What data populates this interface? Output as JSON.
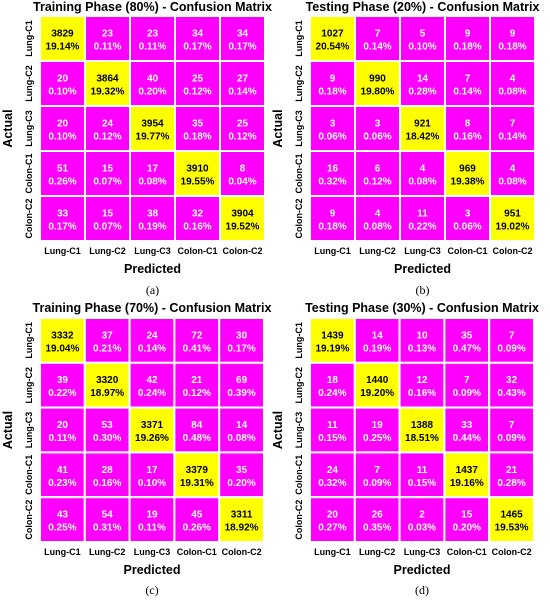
{
  "colors": {
    "offdiag": "#ff00ff",
    "diag": "#ffff00",
    "grid": "#ffffff",
    "offdiag_text": "#ffffff",
    "diag_text": "#000000"
  },
  "chart_data": [
    {
      "type": "heatmap",
      "caption": "(a)",
      "title": "Training Phase (80%) - Confusion Matrix",
      "xlabel": "Predicted",
      "ylabel": "Actual",
      "x_categories": [
        "Lung-C1",
        "Lung-C2",
        "Lung-C3",
        "Colon-C1",
        "Colon-C2"
      ],
      "y_categories": [
        "Lung-C1",
        "Lung-C2",
        "Lung-C3",
        "Colon-C1",
        "Colon-C2"
      ],
      "values": [
        [
          3829,
          23,
          23,
          34,
          34
        ],
        [
          20,
          3864,
          40,
          25,
          27
        ],
        [
          20,
          24,
          3954,
          35,
          25
        ],
        [
          51,
          15,
          17,
          3910,
          8
        ],
        [
          33,
          15,
          38,
          32,
          3904
        ]
      ],
      "percents": [
        [
          "19.14%",
          "0.11%",
          "0.11%",
          "0.17%",
          "0.17%"
        ],
        [
          "0.10%",
          "19.32%",
          "0.20%",
          "0.12%",
          "0.14%"
        ],
        [
          "0.10%",
          "0.12%",
          "19.77%",
          "0.18%",
          "0.12%"
        ],
        [
          "0.26%",
          "0.07%",
          "0.08%",
          "19.55%",
          "0.04%"
        ],
        [
          "0.17%",
          "0.07%",
          "0.19%",
          "0.16%",
          "19.52%"
        ]
      ]
    },
    {
      "type": "heatmap",
      "caption": "(b)",
      "title": "Testing Phase (20%) - Confusion Matrix",
      "xlabel": "Predicted",
      "ylabel": "Actual",
      "x_categories": [
        "Lung-C1",
        "Lung-C2",
        "Lung-C3",
        "Colon-C1",
        "Colon-C2"
      ],
      "y_categories": [
        "Lung-C1",
        "Lung-C2",
        "Lung-C3",
        "Colon-C1",
        "Colon-C2"
      ],
      "values": [
        [
          1027,
          7,
          5,
          9,
          9
        ],
        [
          9,
          990,
          14,
          7,
          4
        ],
        [
          3,
          3,
          921,
          8,
          7
        ],
        [
          16,
          6,
          4,
          969,
          4
        ],
        [
          9,
          4,
          11,
          3,
          951
        ]
      ],
      "percents": [
        [
          "20.54%",
          "0.14%",
          "0.10%",
          "0.18%",
          "0.18%"
        ],
        [
          "0.18%",
          "19.80%",
          "0.28%",
          "0.14%",
          "0.08%"
        ],
        [
          "0.06%",
          "0.06%",
          "18.42%",
          "0.16%",
          "0.14%"
        ],
        [
          "0.32%",
          "0.12%",
          "0.08%",
          "19.38%",
          "0.08%"
        ],
        [
          "0.18%",
          "0.08%",
          "0.22%",
          "0.06%",
          "19.02%"
        ]
      ]
    },
    {
      "type": "heatmap",
      "caption": "(c)",
      "title": "Training Phase (70%) - Confusion Matrix",
      "xlabel": "Predicted",
      "ylabel": "Actual",
      "x_categories": [
        "Lung-C1",
        "Lung-C2",
        "Lung-C3",
        "Colon-C1",
        "Colon-C2"
      ],
      "y_categories": [
        "Lung-C1",
        "Lung-C2",
        "Lung-C3",
        "Colon-C1",
        "Colon-C2"
      ],
      "values": [
        [
          3332,
          37,
          24,
          72,
          30
        ],
        [
          39,
          3320,
          42,
          21,
          69
        ],
        [
          20,
          53,
          3371,
          84,
          14
        ],
        [
          41,
          28,
          17,
          3379,
          35
        ],
        [
          43,
          54,
          19,
          45,
          3311
        ]
      ],
      "percents": [
        [
          "19.04%",
          "0.21%",
          "0.14%",
          "0.41%",
          "0.17%"
        ],
        [
          "0.22%",
          "18.97%",
          "0.24%",
          "0.12%",
          "0.39%"
        ],
        [
          "0.11%",
          "0.30%",
          "19.26%",
          "0.48%",
          "0.08%"
        ],
        [
          "0.23%",
          "0.16%",
          "0.10%",
          "19.31%",
          "0.20%"
        ],
        [
          "0.25%",
          "0.31%",
          "0.11%",
          "0.26%",
          "18.92%"
        ]
      ]
    },
    {
      "type": "heatmap",
      "caption": "(d)",
      "title": "Testing Phase (30%) - Confusion Matrix",
      "xlabel": "Predicted",
      "ylabel": "Actual",
      "x_categories": [
        "Lung-C1",
        "Lung-C2",
        "Lung-C3",
        "Colon-C1",
        "Colon-C2"
      ],
      "y_categories": [
        "Lung-C1",
        "Lung-C2",
        "Lung-C3",
        "Colon-C1",
        "Colon-C2"
      ],
      "values": [
        [
          1439,
          14,
          10,
          35,
          7
        ],
        [
          18,
          1440,
          12,
          7,
          32
        ],
        [
          11,
          19,
          1388,
          33,
          7
        ],
        [
          24,
          7,
          11,
          1437,
          21
        ],
        [
          20,
          26,
          2,
          15,
          1465
        ]
      ],
      "percents": [
        [
          "19.19%",
          "0.19%",
          "0.13%",
          "0.47%",
          "0.09%"
        ],
        [
          "0.24%",
          "19.20%",
          "0.16%",
          "0.09%",
          "0.43%"
        ],
        [
          "0.15%",
          "0.25%",
          "18.51%",
          "0.44%",
          "0.09%"
        ],
        [
          "0.32%",
          "0.09%",
          "0.15%",
          "19.16%",
          "0.28%"
        ],
        [
          "0.27%",
          "0.35%",
          "0.03%",
          "0.20%",
          "19.53%"
        ]
      ]
    }
  ]
}
